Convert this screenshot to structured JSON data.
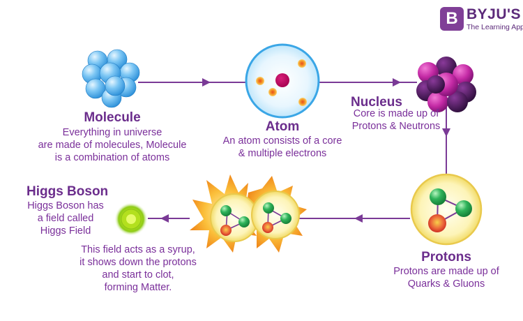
{
  "brand": {
    "logo_letter": "B",
    "name": "BYJU'S",
    "tagline": "The Learning App",
    "color": "#803f97"
  },
  "colors": {
    "text": "#7a2f9a",
    "title": "#6b2d8c",
    "arrow": "#7a3a96",
    "molecule_blue": "#4aa8e8",
    "proton_green": "#2fb35a",
    "proton_red": "#e84b3c",
    "higgs_green": "#a6d81e",
    "burst_orange": "#f5a623"
  },
  "stages": {
    "molecule": {
      "title": "Molecule",
      "desc": [
        "Everything in universe",
        "are made of molecules, Molecule",
        "is a combination of atoms"
      ]
    },
    "atom": {
      "title": "Atom",
      "desc": [
        "An atom consists of a core",
        "& multiple electrons"
      ]
    },
    "nucleus": {
      "title": "Nucleus",
      "desc": [
        "Core is made up of",
        "Protons & Neutrons"
      ]
    },
    "protons": {
      "title": "Protons",
      "desc": [
        "Protons are made up of",
        "Quarks & Gluons"
      ]
    },
    "higgs": {
      "title": "Higgs Boson",
      "desc": [
        "Higgs Boson has",
        "a field called",
        "Higgs Field"
      ],
      "note": [
        "This field acts as a syrup,",
        "it shows down the protons",
        "and start to clot,",
        "forming Matter."
      ]
    }
  }
}
